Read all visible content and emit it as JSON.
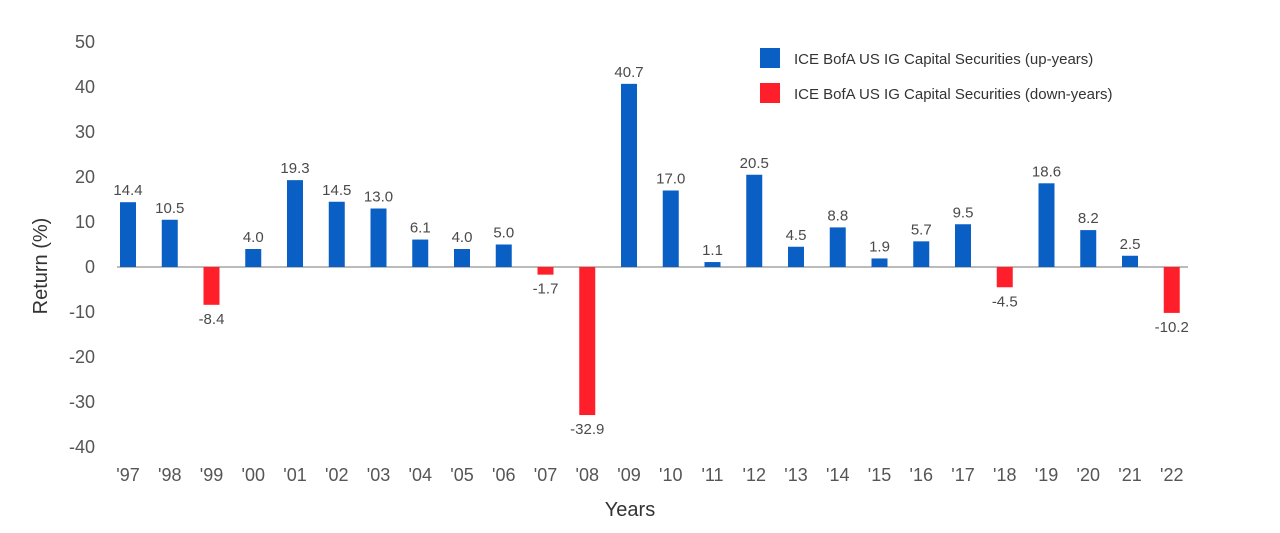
{
  "chart_data": {
    "type": "bar",
    "title": "",
    "xlabel": "Years",
    "ylabel": "Return (%)",
    "ylim": [
      -40,
      50
    ],
    "yticks": [
      "50",
      "40",
      "30",
      "20",
      "10",
      "0",
      "-10",
      "-20",
      "-30",
      "-40"
    ],
    "ytick_values": [
      50,
      40,
      30,
      20,
      10,
      0,
      -10,
      -20,
      -30,
      -40
    ],
    "grid": false,
    "legend_position": "top-right",
    "categories": [
      "'97",
      "'98",
      "'99",
      "'00",
      "'01",
      "'02",
      "'03",
      "'04",
      "'05",
      "'06",
      "'07",
      "'08",
      "'09",
      "'10",
      "'11",
      "'12",
      "'13",
      "'14",
      "'15",
      "'16",
      "'17",
      "'18",
      "'19",
      "'20",
      "'21",
      "'22"
    ],
    "values": [
      14.4,
      10.5,
      -8.4,
      4.0,
      19.3,
      14.5,
      13.0,
      6.1,
      4.0,
      5.0,
      -1.7,
      -32.9,
      40.7,
      17.0,
      1.1,
      20.5,
      4.5,
      8.8,
      1.9,
      5.7,
      9.5,
      -4.5,
      18.6,
      8.2,
      2.5,
      -10.2
    ],
    "value_labels": [
      "14.4",
      "10.5",
      "-8.4",
      "4.0",
      "19.3",
      "14.5",
      "13.0",
      "6.1",
      "4.0",
      "5.0",
      "-1.7",
      "-32.9",
      "40.7",
      "17.0",
      "1.1",
      "20.5",
      "4.5",
      "8.8",
      "1.9",
      "5.7",
      "9.5",
      "-4.5",
      "18.6",
      "8.2",
      "2.5",
      "-10.2"
    ],
    "series": [
      {
        "name": "ICE BofA US IG Capital Securities (up-years)",
        "color": "#0a5fc4"
      },
      {
        "name": "ICE BofA US IG Capital Securities (down-years)",
        "color": "#ff1f2b"
      }
    ]
  },
  "legend": {
    "up_label": "ICE BofA US IG Capital Securities (up-years)",
    "down_label": "ICE BofA US IG Capital Securities (down-years)"
  },
  "axes": {
    "x_title": "Years",
    "y_title": "Return (%)"
  }
}
